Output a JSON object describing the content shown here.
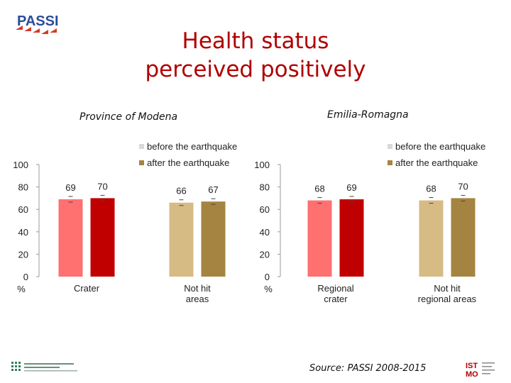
{
  "header": {
    "logo_text": "PASSI",
    "title_line1": "Health status",
    "title_line2": "perceived positively"
  },
  "footer": {
    "source": "Source: PASSI 2008-2015",
    "left_logo_text": "CENTRO SORVEGLIANZA ... EMILIA-ROMAGNA",
    "right_logo_text": "ISTMO"
  },
  "colors": {
    "before_crater": "#ff7070",
    "after_crater": "#c00000",
    "before_nothit": "#d6bb85",
    "after_nothit": "#a58441",
    "title": "#b00000"
  },
  "chart_data": [
    {
      "type": "bar",
      "title": "Province of Modena",
      "ylabel": "%",
      "ylim": [
        0,
        100
      ],
      "yticks": [
        0,
        20,
        40,
        60,
        80,
        100
      ],
      "legend": [
        "before the earthquake",
        "after the earthquake"
      ],
      "legend_position": "top-right",
      "categories": [
        "Crater",
        "Not hit areas"
      ],
      "series": [
        {
          "name": "before the earthquake",
          "values": [
            69,
            66
          ]
        },
        {
          "name": "after the earthquake",
          "values": [
            70,
            67
          ]
        }
      ]
    },
    {
      "type": "bar",
      "title": "Emilia-Romagna",
      "ylabel": "%",
      "ylim": [
        0,
        100
      ],
      "yticks": [
        0,
        20,
        40,
        60,
        80,
        100
      ],
      "legend": [
        "before the earthquake",
        "after the earthquake"
      ],
      "legend_position": "top-right",
      "categories": [
        "Regional crater",
        "Not hit regional areas"
      ],
      "series": [
        {
          "name": "before the earthquake",
          "values": [
            68,
            68
          ]
        },
        {
          "name": "after the earthquake",
          "values": [
            69,
            70
          ]
        }
      ]
    }
  ]
}
